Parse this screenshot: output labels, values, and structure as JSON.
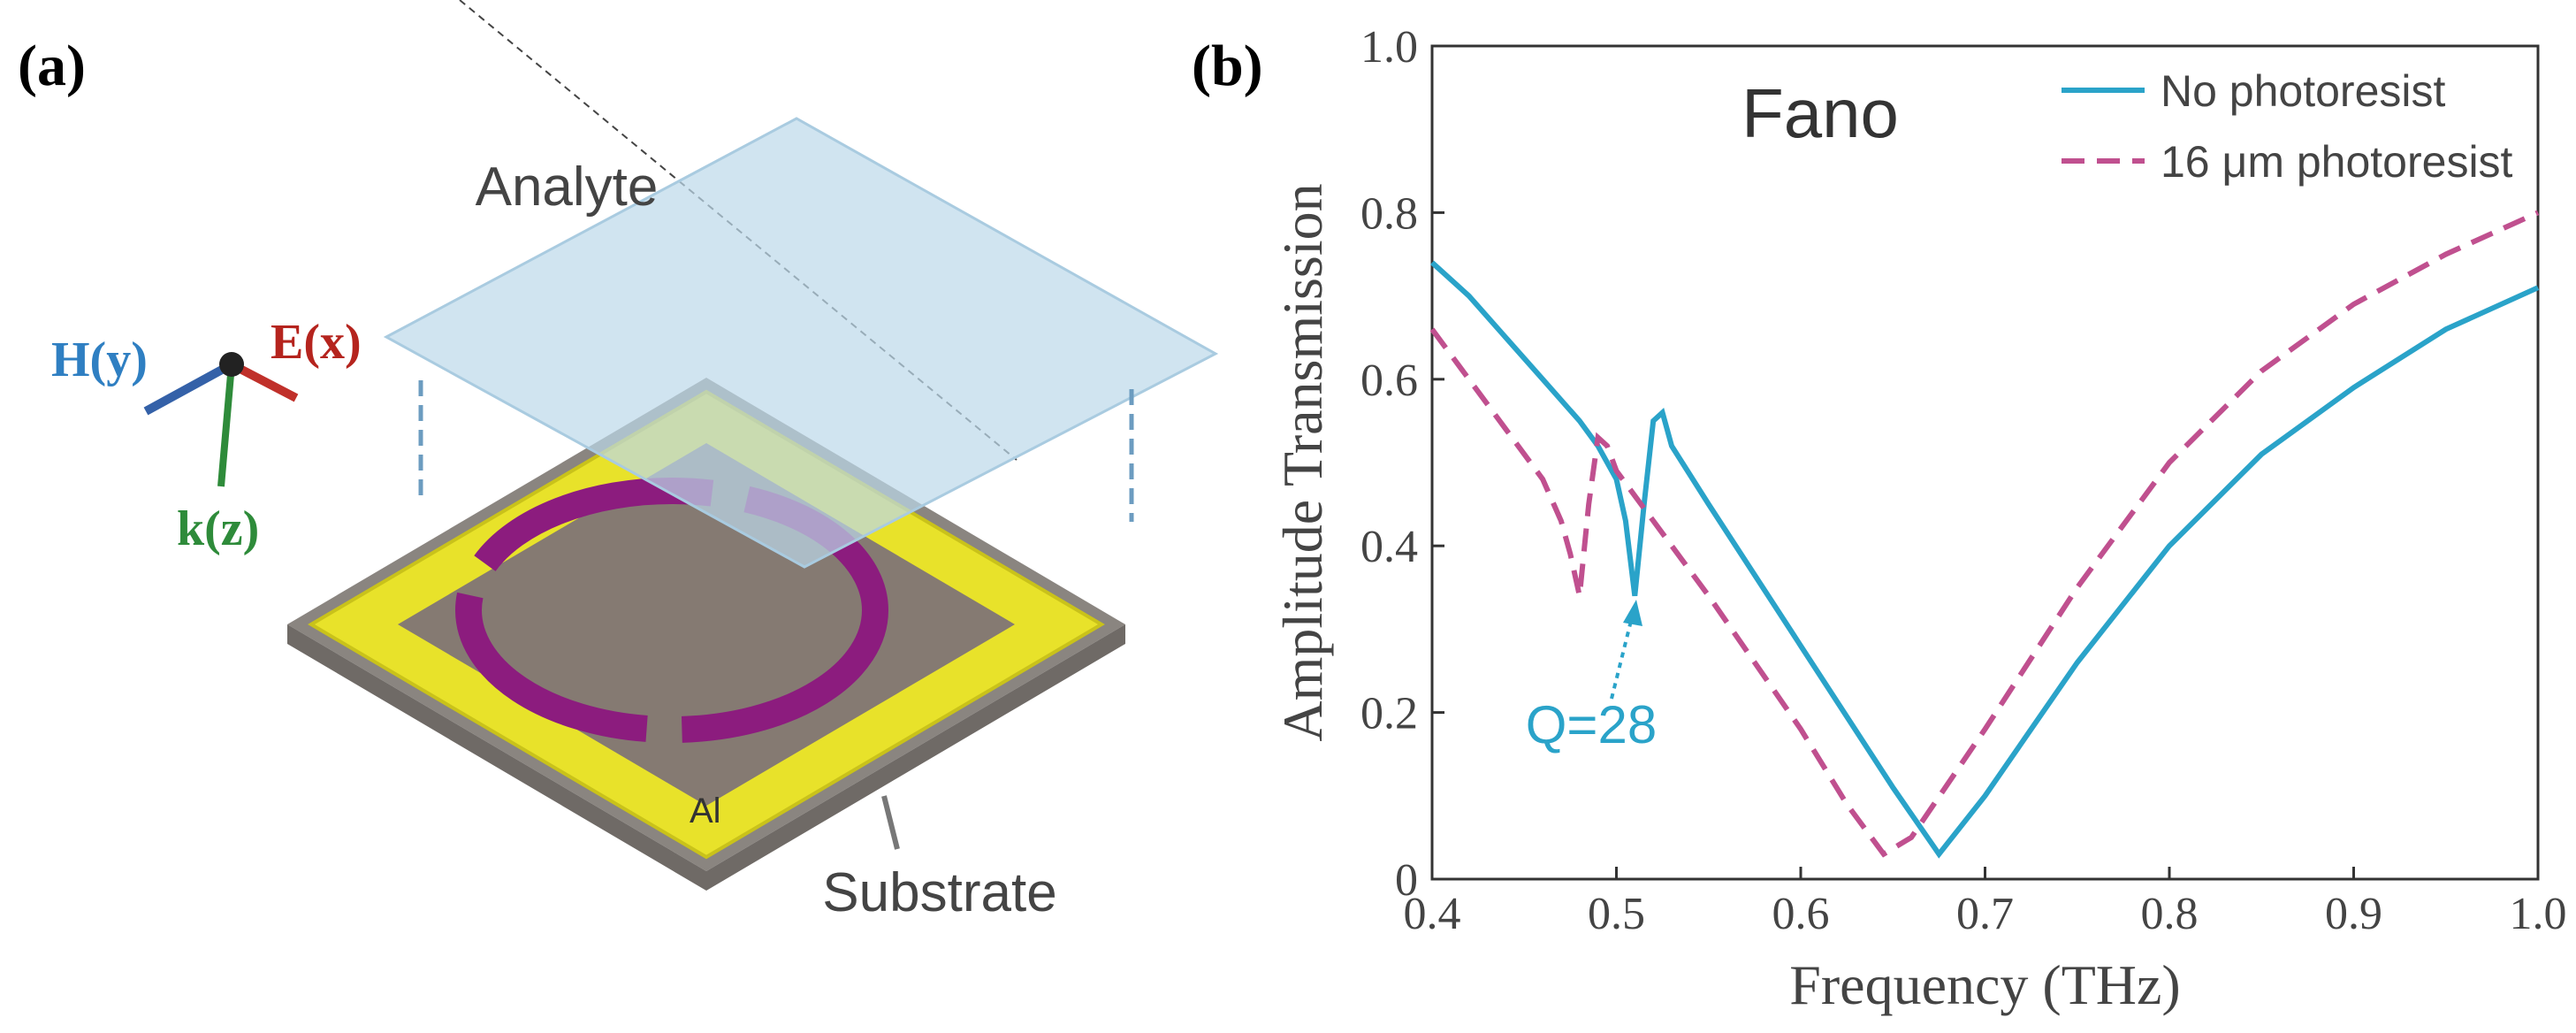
{
  "panel_a": {
    "label": "(a)",
    "analyte": "Analyte",
    "h_axis": "H(y)",
    "e_axis": "E(x)",
    "k_axis": "k(z)",
    "metal": "Al",
    "substrate": "Substrate"
  },
  "chart_data": {
    "type": "line",
    "panel_label": "(b)",
    "x_label": "Frequency (THz)",
    "y_label": "Amplitude Transmission",
    "annotations": [
      "Fano",
      "Q=28"
    ],
    "xlim": [
      0.4,
      1.0
    ],
    "xticks": [
      0.4,
      0.5,
      0.6,
      0.7,
      0.8,
      0.9,
      {
        "value": 1.0,
        "label": "1.0"
      }
    ],
    "ylim": [
      0,
      1.0
    ],
    "yticks": [
      0,
      0.2,
      0.4,
      0.6,
      0.8,
      {
        "value": 1.0,
        "label": "1.0"
      }
    ],
    "legend": "upper right",
    "series": [
      {
        "name": "No photoresist",
        "color": "#2aa3c9",
        "style": "solid",
        "x": [
          0.4,
          0.42,
          0.44,
          0.46,
          0.48,
          0.49,
          0.5,
          0.505,
          0.51,
          0.515,
          0.52,
          0.525,
          0.53,
          0.55,
          0.6,
          0.65,
          0.675,
          0.7,
          0.75,
          0.8,
          0.85,
          0.9,
          0.95,
          1.0
        ],
        "values": [
          0.74,
          0.7,
          0.65,
          0.6,
          0.55,
          0.52,
          0.48,
          0.43,
          0.34,
          0.45,
          0.55,
          0.56,
          0.52,
          0.45,
          0.28,
          0.11,
          0.03,
          0.1,
          0.26,
          0.4,
          0.51,
          0.59,
          0.66,
          0.71
        ]
      },
      {
        "name": "16 μm photoresist",
        "color": "#c0508f",
        "style": "dashed",
        "x": [
          0.4,
          0.42,
          0.44,
          0.46,
          0.47,
          0.475,
          0.48,
          0.485,
          0.49,
          0.495,
          0.5,
          0.52,
          0.55,
          0.6,
          0.625,
          0.645,
          0.66,
          0.7,
          0.75,
          0.8,
          0.85,
          0.9,
          0.95,
          1.0
        ],
        "values": [
          0.66,
          0.6,
          0.54,
          0.48,
          0.43,
          0.39,
          0.34,
          0.45,
          0.53,
          0.52,
          0.49,
          0.43,
          0.34,
          0.18,
          0.09,
          0.03,
          0.05,
          0.18,
          0.35,
          0.5,
          0.61,
          0.69,
          0.75,
          0.8
        ]
      }
    ]
  }
}
